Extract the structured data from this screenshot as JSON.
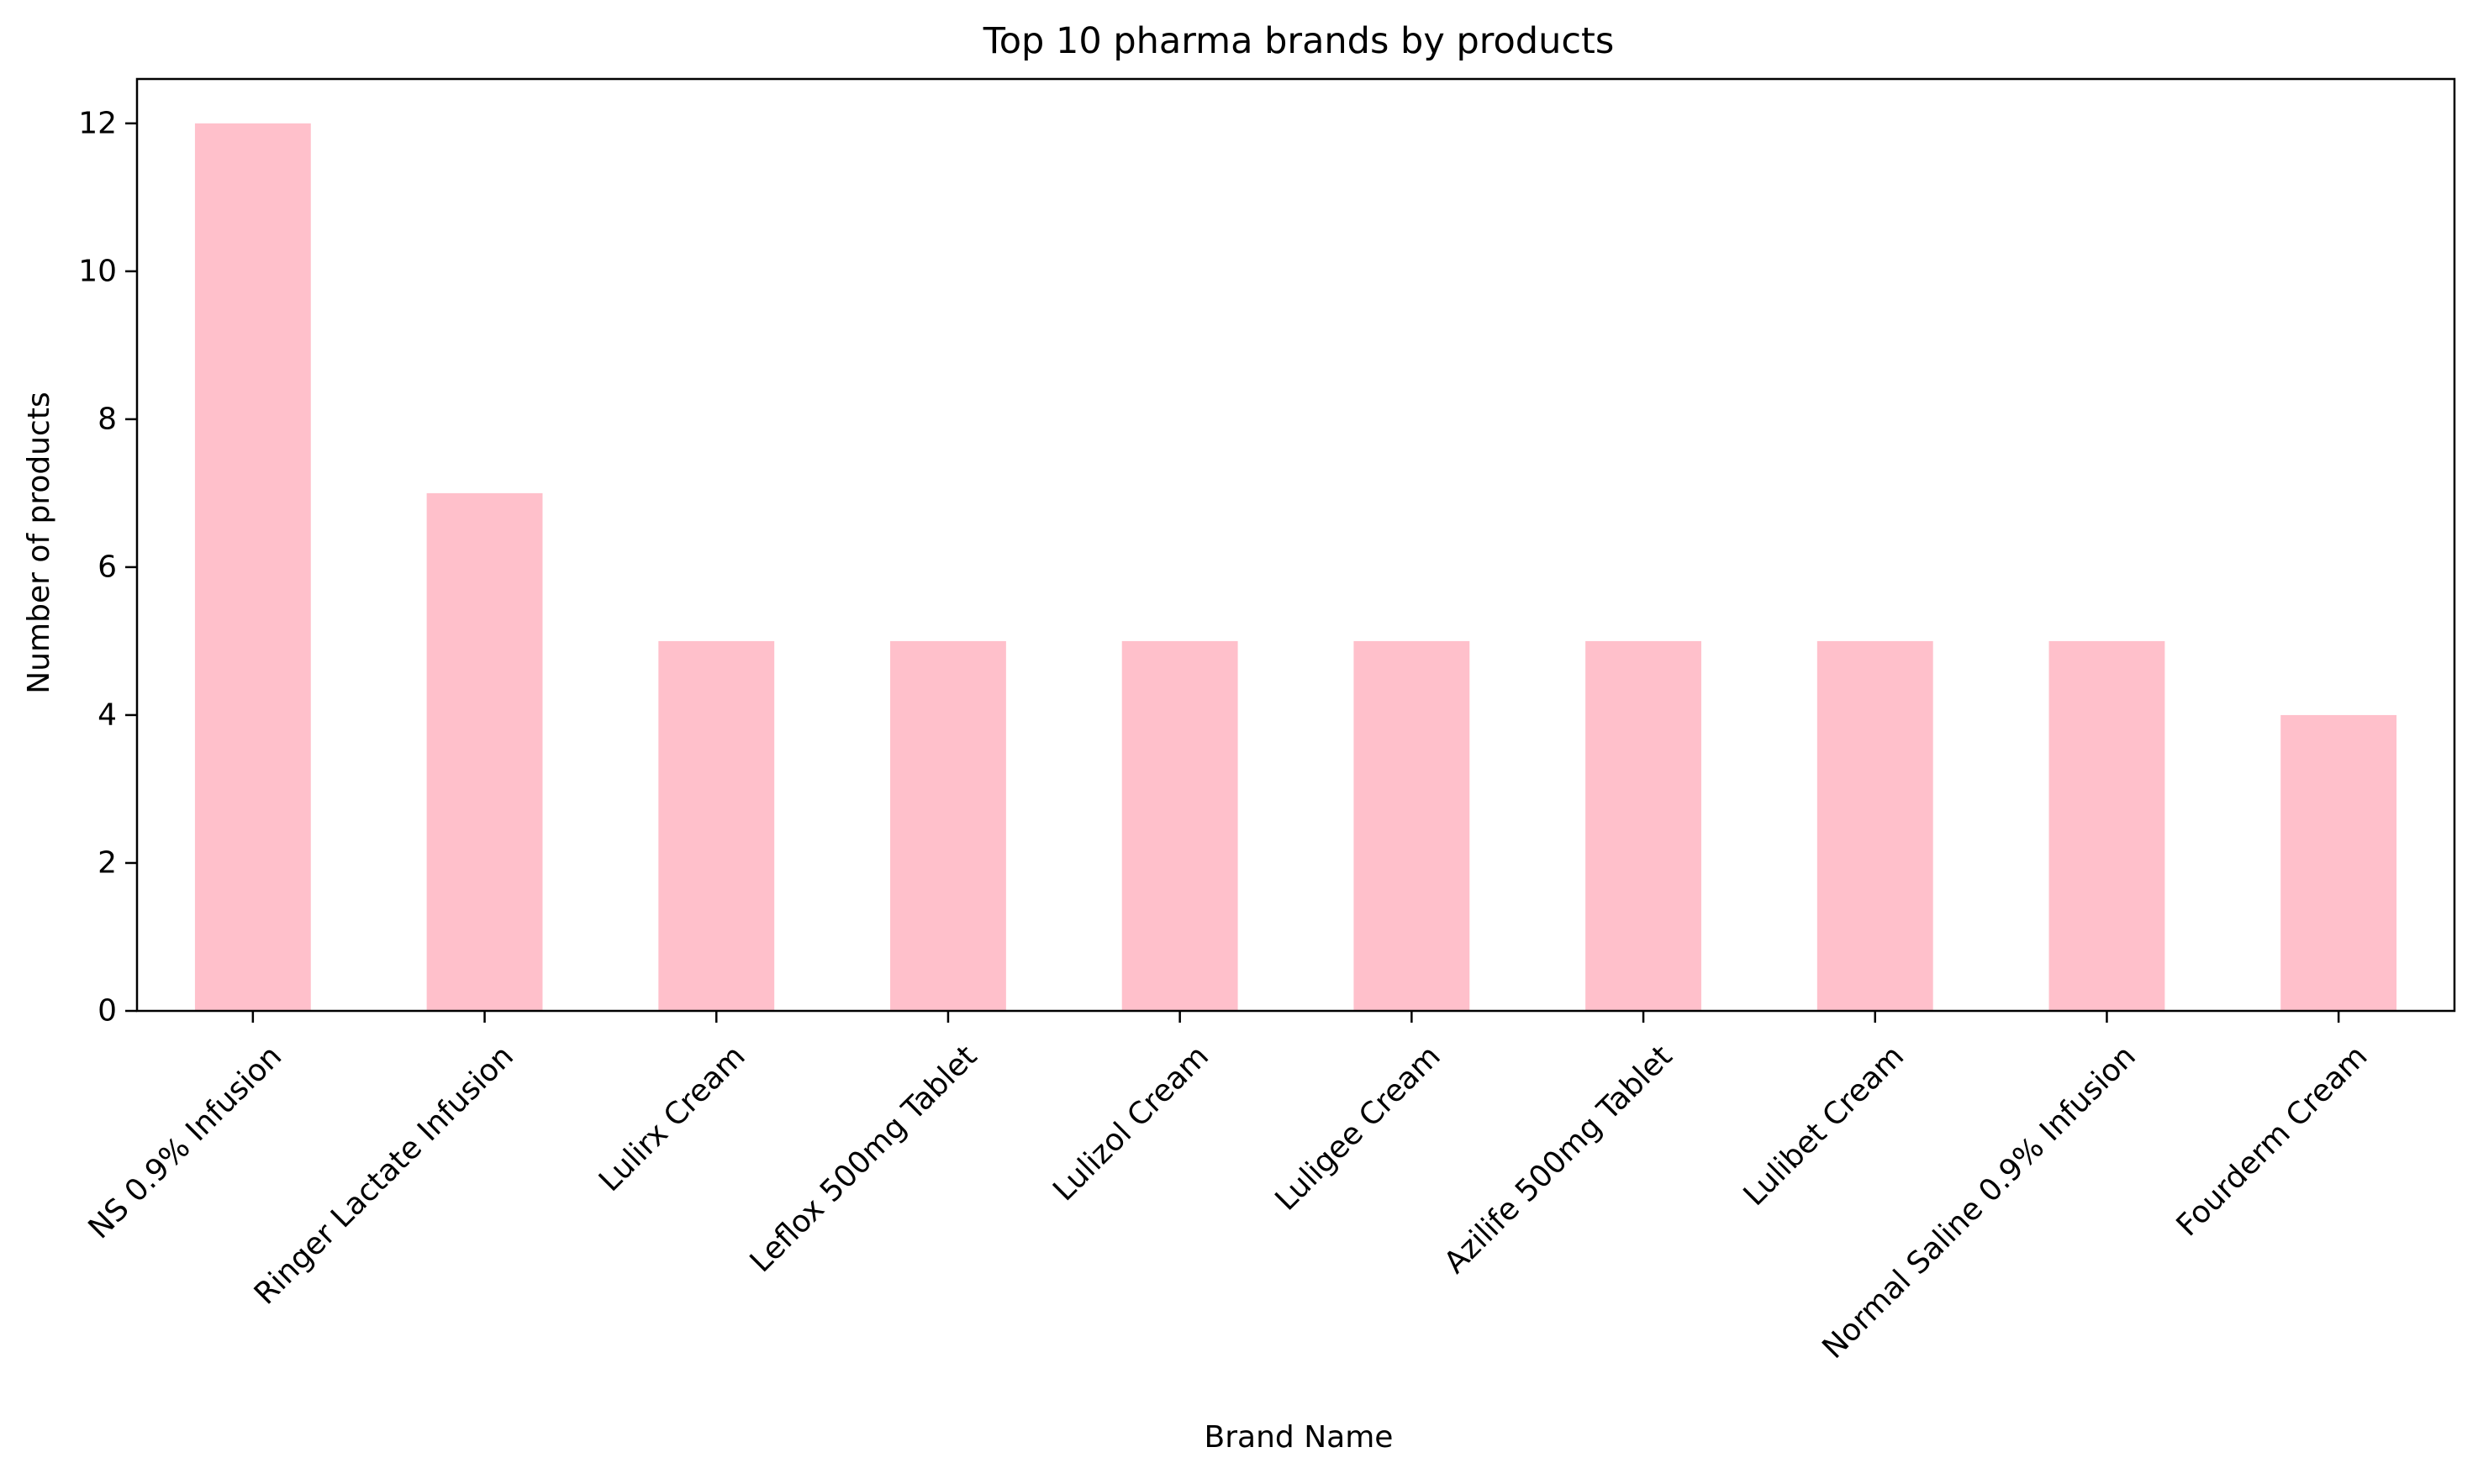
{
  "chart_data": {
    "type": "bar",
    "title": "Top 10 pharma brands by products",
    "xlabel": "Brand Name",
    "ylabel": "Number of products",
    "categories": [
      "NS 0.9% Infusion",
      "Ringer Lactate Infusion",
      "Lulirx Cream",
      "Leflox 500mg Tablet",
      "Lulizol Cream",
      "Luligee Cream",
      "Azilife 500mg Tablet",
      "Lulibet Cream",
      "Normal Saline 0.9% Infusion",
      "Fourderm Cream"
    ],
    "values": [
      12,
      7,
      5,
      5,
      5,
      5,
      5,
      5,
      5,
      4
    ],
    "ylim": [
      0,
      12.6
    ],
    "yticks": [
      0,
      2,
      4,
      6,
      8,
      10,
      12
    ],
    "grid": false,
    "legend": "none",
    "bar_color": "#ffc0cb",
    "x_tick_rotation": 45
  }
}
